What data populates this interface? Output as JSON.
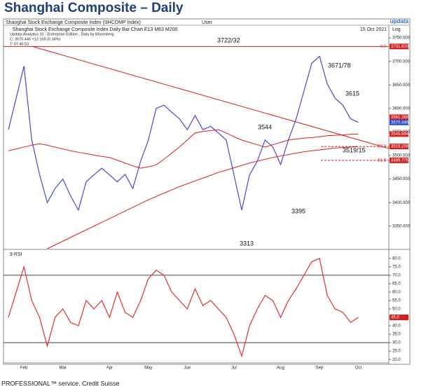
{
  "title": "Shanghai Composite – Daily",
  "logo": "updata",
  "header": {
    "index": "Shanghai Stock Exchange Composite Index (SHCOMP Index)",
    "user": "User",
    "chart": "Shanghai Stock Exchange Composite Index Daily Bar Chart   E13    M63    M200",
    "date": "15 Oct 2021",
    "scale": "Log",
    "source": "Updata Analytics 10 - Enterprise Edition , Data by Bloomberg",
    "close": "C: 3570.446 +12.165 (0.34%)",
    "time": "T: 07:46:53"
  },
  "footer": "PROFESSIONAL™ service, Credit Suisse",
  "chart_data": [
    {
      "type": "line",
      "ylim": [
        3302,
        3771
      ],
      "yticks": [
        {
          "value": 3350,
          "label": "3350.000"
        },
        {
          "value": 3400,
          "label": "3400.000"
        },
        {
          "value": 3450,
          "label": "3450.000"
        },
        {
          "value": 3500,
          "label": "3500.000"
        },
        {
          "value": 3550,
          "label": "3550.000"
        },
        {
          "value": 3600,
          "label": "3600.000"
        },
        {
          "value": 3650,
          "label": "3650.000"
        },
        {
          "value": 3700,
          "label": "3700.000"
        },
        {
          "value": 3750,
          "label": "3750.000"
        }
      ],
      "series": [
        {
          "name": "Close",
          "color": "#4a4ac8",
          "values": [
            3555,
            3622,
            3690,
            3533,
            3460,
            3400,
            3430,
            3450,
            3414,
            3384,
            3444,
            3459,
            3473,
            3459,
            3444,
            3460,
            3430,
            3488,
            3533,
            3600,
            3607,
            3592,
            3578,
            3555,
            3585,
            3555,
            3562,
            3548,
            3533,
            3459,
            3384,
            3459,
            3488,
            3533,
            3518,
            3481,
            3533,
            3578,
            3637,
            3696,
            3711,
            3652,
            3622,
            3607,
            3578,
            3570.446
          ]
        },
        {
          "name": "M63",
          "color": "#d42020",
          "values": [
            3510,
            3514,
            3518,
            3522,
            3525,
            3522,
            3518,
            3514,
            3510,
            3507,
            3504,
            3501,
            3498,
            3496,
            3490,
            3484,
            3478,
            3473,
            3476,
            3480,
            3492,
            3505,
            3518,
            3533,
            3548,
            3551,
            3553,
            3555,
            3548,
            3540,
            3533,
            3528,
            3523,
            3518,
            3523,
            3528,
            3533,
            3535,
            3537,
            3538,
            3540,
            3542,
            3543,
            3544,
            3545,
            3545.684
          ]
        },
        {
          "name": "M200",
          "color": "#d42020",
          "values": [
            null,
            null,
            null,
            null,
            null,
            3302,
            3310,
            3318,
            3326,
            3334,
            3342,
            3350,
            3358,
            3366,
            3374,
            3382,
            3390,
            3398,
            3406,
            3413,
            3420,
            3427,
            3434,
            3440,
            3446,
            3452,
            3458,
            3464,
            3469,
            3474,
            3479,
            3484,
            3488,
            3492,
            3496,
            3499,
            3502,
            3505,
            3508,
            3510,
            3512,
            3514,
            3516,
            3517,
            3518,
            3519
          ]
        }
      ],
      "levels": [
        {
          "value": 3731.82,
          "label": "0.0"
        },
        {
          "value": 3519.258,
          "label": "50.0"
        },
        {
          "value": 3489.776,
          "label": "61.8"
        }
      ],
      "tags": [
        {
          "value": 3731.82,
          "label": "3731.820",
          "color": "#d42020"
        },
        {
          "value": 3581.388,
          "label": "3581.388",
          "color": "#d42020"
        },
        {
          "value": 3570.446,
          "label": "3570.446",
          "color": "#2a4ad0"
        },
        {
          "value": 3545.684,
          "label": "3545.684",
          "color": "#d42020"
        },
        {
          "value": 3519.258,
          "label": "3519.258",
          "color": "#d42020"
        },
        {
          "value": 3489.776,
          "label": "3489.776",
          "color": "#d42020"
        }
      ],
      "annotations": [
        "3722/32",
        "3671/78",
        "3615",
        "3544",
        "3519/15",
        "3395",
        "3313"
      ]
    },
    {
      "type": "line",
      "title": "9 RSI",
      "ylim": [
        18,
        84.5
      ],
      "yticks": [
        {
          "value": 20,
          "label": "20.0"
        },
        {
          "value": 25,
          "label": "25.0"
        },
        {
          "value": 30,
          "label": "30.0"
        },
        {
          "value": 35,
          "label": "35.0"
        },
        {
          "value": 40,
          "label": "40.0"
        },
        {
          "value": 45,
          "label": "45.0"
        },
        {
          "value": 50,
          "label": "50.0"
        },
        {
          "value": 55,
          "label": "55.0"
        },
        {
          "value": 60,
          "label": "60.0"
        },
        {
          "value": 65,
          "label": "65.0"
        },
        {
          "value": 70,
          "label": "70.0"
        },
        {
          "value": 75,
          "label": "75.0"
        },
        {
          "value": 80,
          "label": "80.0"
        }
      ],
      "levels": [
        70,
        30
      ],
      "categories": [
        null,
        null,
        "Feb",
        null,
        null,
        null,
        null,
        "Mar",
        null,
        null,
        null,
        null,
        null,
        "Apr",
        null,
        null,
        null,
        null,
        "May",
        null,
        null,
        null,
        null,
        "Jun",
        null,
        null,
        null,
        null,
        null,
        "Jul",
        null,
        null,
        null,
        null,
        null,
        "Aug",
        null,
        null,
        null,
        null,
        "Sep",
        null,
        null,
        null,
        null,
        "Oct"
      ],
      "series": [
        {
          "name": "RSI",
          "color": "#e03030",
          "values": [
            45,
            60,
            75,
            55,
            45,
            28,
            45,
            50,
            42,
            40,
            55,
            50,
            55,
            45,
            60,
            48,
            45,
            55,
            68,
            73,
            70,
            60,
            55,
            50,
            62,
            52,
            55,
            50,
            45,
            35,
            22,
            40,
            50,
            58,
            55,
            45,
            55,
            62,
            70,
            78,
            80,
            58,
            50,
            48,
            42,
            45
          ]
        }
      ],
      "tag": {
        "value": 45,
        "label": "45.0",
        "color": "#d42020"
      }
    }
  ]
}
